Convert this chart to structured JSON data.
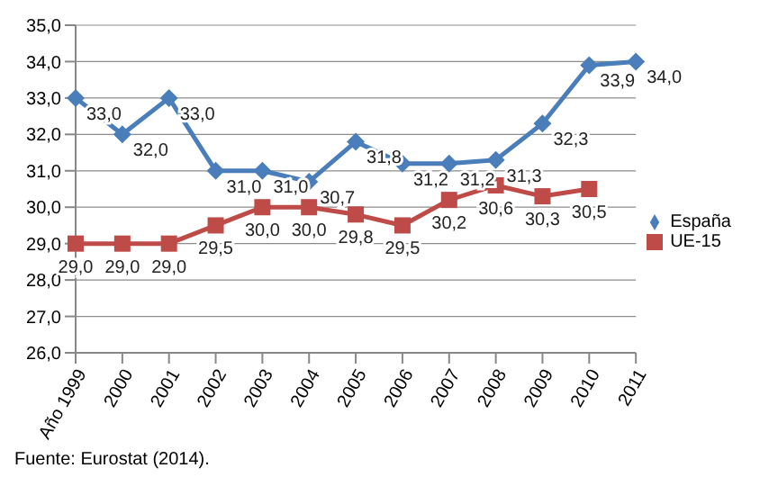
{
  "chart_data": {
    "type": "line",
    "categories": [
      "Año 1999",
      "2000",
      "2001",
      "2002",
      "2003",
      "2004",
      "2005",
      "2006",
      "2007",
      "2008",
      "2009",
      "2010",
      "2011"
    ],
    "series": [
      {
        "name": "España",
        "color": "#4a7ebb",
        "marker": "diamond",
        "values": [
          33.0,
          32.0,
          33.0,
          31.0,
          31.0,
          30.7,
          31.8,
          31.2,
          31.2,
          31.3,
          32.3,
          33.9,
          34.0
        ],
        "value_labels": [
          "33,0",
          "32,0",
          "33,0",
          "31,0",
          "31,0",
          "30,7",
          "31,8",
          "31,2",
          "31,2",
          "31,3",
          "32,3",
          "33,9",
          "34,0"
        ]
      },
      {
        "name": "UE-15",
        "color": "#be4b48",
        "marker": "square",
        "values": [
          29.0,
          29.0,
          29.0,
          29.5,
          30.0,
          30.0,
          29.8,
          29.5,
          30.2,
          30.6,
          30.3,
          30.5,
          null
        ],
        "value_labels": [
          "29,0",
          "29,0",
          "29,0",
          "29,5",
          "30,0",
          "30,0",
          "29,8",
          "29,5",
          "30,2",
          "30,6",
          "30,3",
          "30,5",
          null
        ]
      }
    ],
    "ylim": [
      26,
      35
    ],
    "yticks": [
      {
        "value": 26,
        "label": "26,0"
      },
      {
        "value": 27,
        "label": "27,0"
      },
      {
        "value": 28,
        "label": "28,0"
      },
      {
        "value": 29,
        "label": "29,0"
      },
      {
        "value": 30,
        "label": "30,0"
      },
      {
        "value": 31,
        "label": "31,0"
      },
      {
        "value": 32,
        "label": "32,0"
      },
      {
        "value": 33,
        "label": "33,0"
      },
      {
        "value": 34,
        "label": "34,0"
      },
      {
        "value": 35,
        "label": "35,0"
      }
    ],
    "grid": "y",
    "legend": "right",
    "annotations": [
      "Fuente: Eurostat (2014)."
    ]
  }
}
